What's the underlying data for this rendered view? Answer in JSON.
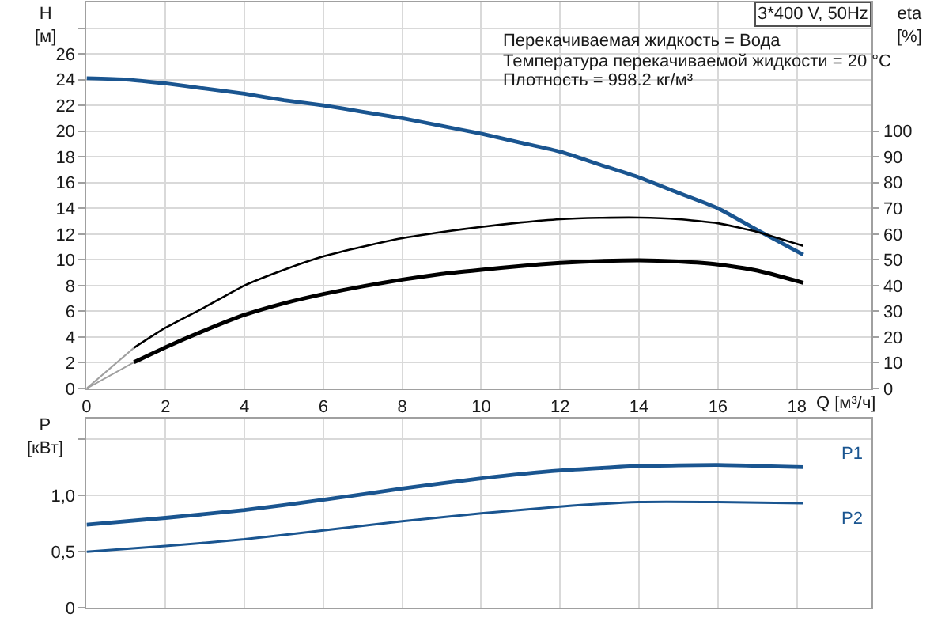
{
  "chart_data": [
    {
      "type": "line",
      "title": "3*400 V, 50Hz",
      "xlabel": "Q [м³/ч]",
      "ylabel": "H [м]",
      "y2label": "eta [%]",
      "annotations": [
        "Перекачиваемая жидкость = Вода",
        "Температура перекачиваемой жидкости = 20 °C",
        "Плотность = 998.2 кг/м³"
      ],
      "series": [
        {
          "color": "#1a5590",
          "x": [
            0,
            1,
            2,
            3,
            4,
            5,
            6,
            7,
            8,
            9,
            10,
            11,
            12,
            13,
            14,
            15,
            16,
            17,
            18.16
          ],
          "values": [
            24.1,
            24.0,
            23.7,
            23.3,
            22.9,
            22.4,
            22.0,
            21.5,
            21.0,
            20.4,
            19.8,
            19.1,
            18.4,
            17.4,
            16.4,
            15.2,
            14.0,
            12.3,
            10.4
          ]
        },
        {
          "color": "#000000",
          "axis": "y2",
          "x": [
            1.2,
            2,
            3,
            4,
            5,
            6,
            7,
            8,
            9,
            10,
            11,
            12,
            13,
            14,
            15,
            16,
            17,
            18.16
          ],
          "values": [
            15.8,
            23.6,
            31.6,
            40,
            46.1,
            51.3,
            55.1,
            58.4,
            60.8,
            62.8,
            64.5,
            65.8,
            66.3,
            66.4,
            65.8,
            64.2,
            60.8,
            55.4
          ]
        },
        {
          "color": "#000000",
          "axis": "y2",
          "x": [
            1.2,
            2,
            3,
            4,
            5,
            6,
            7,
            8,
            9,
            10,
            11,
            12,
            13,
            14,
            15,
            16,
            17,
            18.16
          ],
          "values": [
            10.2,
            16,
            22.6,
            28.6,
            33.1,
            36.7,
            39.7,
            42.3,
            44.5,
            46.1,
            47.6,
            48.8,
            49.5,
            49.8,
            49.3,
            48.2,
            45.8,
            41.1
          ]
        },
        {
          "color": "#a0a0a0",
          "axis": "y2",
          "x": [
            0,
            1.2
          ],
          "values": [
            0,
            15.8
          ]
        },
        {
          "color": "#a0a0a0",
          "axis": "y2",
          "x": [
            0,
            1.2
          ],
          "values": [
            0,
            10.2
          ]
        }
      ],
      "xlim": [
        0,
        19.9
      ],
      "xticks": [
        0,
        2,
        4,
        6,
        8,
        10,
        12,
        14,
        16,
        18
      ],
      "ylim": [
        0,
        30
      ],
      "yticks": [
        0,
        2,
        4,
        6,
        8,
        10,
        12,
        14,
        16,
        18,
        20,
        22,
        24,
        26,
        {
          "value": 28,
          "label": null
        }
      ],
      "y2lim": [
        0,
        150
      ],
      "y2ticks": [
        0,
        10,
        20,
        30,
        40,
        50,
        60,
        70,
        80,
        90,
        100
      ],
      "grid": true,
      "line_style": "solid"
    },
    {
      "type": "line",
      "ylabel": "P [кВт]",
      "series": [
        {
          "name": "P1",
          "color": "#1a5590",
          "x": [
            0,
            2,
            4,
            6,
            8,
            10,
            12,
            14,
            16,
            18.16
          ],
          "values": [
            0.74,
            0.8,
            0.87,
            0.96,
            1.06,
            1.15,
            1.22,
            1.26,
            1.27,
            1.25
          ]
        },
        {
          "name": "P2",
          "color": "#1a5590",
          "x": [
            0,
            2,
            4,
            6,
            8,
            10,
            12,
            14,
            16,
            18.16
          ],
          "values": [
            0.5,
            0.55,
            0.61,
            0.69,
            0.77,
            0.84,
            0.9,
            0.94,
            0.94,
            0.93
          ]
        }
      ],
      "xlim": [
        0,
        19.9
      ],
      "xticks": [
        0,
        2,
        4,
        6,
        8,
        10,
        12,
        14,
        16,
        18
      ],
      "ylim": [
        0,
        1.68
      ],
      "yticks": [
        0,
        {
          "value": 0.5,
          "label": "0,5"
        },
        {
          "value": 1,
          "label": "1,0"
        },
        {
          "value": 1.5,
          "label": null
        }
      ],
      "tick_labels": "y",
      "grid": true,
      "line_style": "solid"
    }
  ]
}
